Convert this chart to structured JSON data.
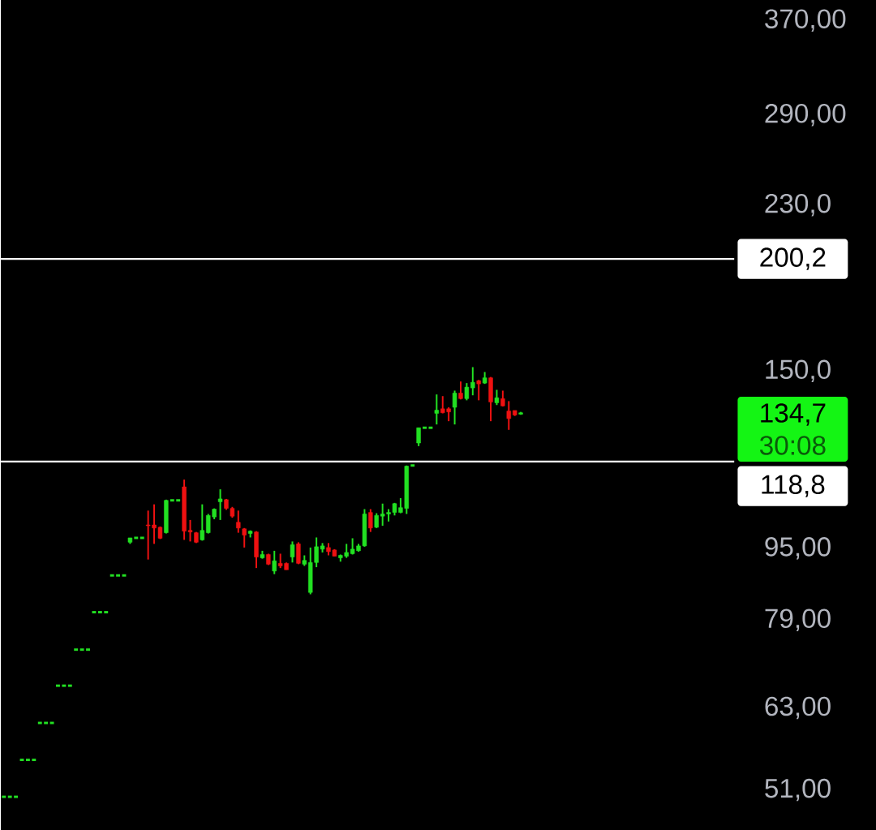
{
  "chart_data": {
    "type": "candlestick",
    "log": true,
    "grid": false,
    "categories": [
      null,
      null,
      null,
      null,
      null,
      null,
      null,
      null,
      null,
      null,
      null,
      null,
      null,
      null,
      null,
      null,
      null,
      null,
      null,
      null,
      null,
      null,
      null,
      null,
      null,
      null,
      null,
      null,
      null,
      null,
      null,
      null,
      null,
      null,
      null,
      null,
      null,
      null,
      null,
      null,
      null,
      null,
      null,
      null,
      null,
      null,
      null,
      null,
      null,
      null,
      null,
      null,
      null,
      null,
      null,
      null,
      null,
      null,
      null,
      null,
      null,
      null,
      null,
      null,
      null,
      null,
      null,
      null,
      null,
      null,
      null,
      null,
      null,
      null,
      null,
      null,
      null,
      null,
      null,
      null,
      null,
      null,
      null,
      null,
      null,
      null,
      null,
      null,
      null,
      null,
      null,
      null,
      null,
      null,
      null,
      null,
      null,
      null,
      null,
      null,
      null,
      null,
      null,
      null,
      null,
      null,
      null,
      null,
      null,
      null,
      null,
      null,
      null,
      null,
      null,
      null,
      null,
      null,
      null,
      null,
      null,
      null
    ],
    "ohlc": [
      [
        50.1,
        50.1,
        50.1,
        50.1
      ],
      [
        50.1,
        50.1,
        50.1,
        50.1
      ],
      [
        50.1,
        50.1,
        50.1,
        50.1
      ],
      [
        55.1,
        55.1,
        55.1,
        55.1
      ],
      [
        55.1,
        55.1,
        55.1,
        55.1
      ],
      [
        55.1,
        55.1,
        55.1,
        55.1
      ],
      [
        60.6,
        60.6,
        60.6,
        60.6
      ],
      [
        60.6,
        60.6,
        60.6,
        60.6
      ],
      [
        60.6,
        60.6,
        60.6,
        60.6
      ],
      [
        66.7,
        66.7,
        66.7,
        66.7
      ],
      [
        66.7,
        66.7,
        66.7,
        66.7
      ],
      [
        66.7,
        66.7,
        66.7,
        66.7
      ],
      [
        73.2,
        73.2,
        73.2,
        73.2
      ],
      [
        73.2,
        73.2,
        73.2,
        73.2
      ],
      [
        73.2,
        73.2,
        73.2,
        73.2
      ],
      [
        80.6,
        80.6,
        80.6,
        80.6
      ],
      [
        80.6,
        80.6,
        80.6,
        80.6
      ],
      [
        80.6,
        80.6,
        80.6,
        80.6
      ],
      [
        88.6,
        88.6,
        88.6,
        88.6
      ],
      [
        88.6,
        88.6,
        88.6,
        88.6
      ],
      [
        88.6,
        88.6,
        88.6,
        88.6
      ],
      [
        96.5,
        97.6,
        96.1,
        97.6
      ],
      [
        97.6,
        97.6,
        97.6,
        97.6
      ],
      [
        97.6,
        97.6,
        97.6,
        97.6
      ],
      [
        100.9,
        104.7,
        92.3,
        100.7
      ],
      [
        100.9,
        106.4,
        96.1,
        100.1
      ],
      [
        100.3,
        100.5,
        97.3,
        97.5
      ],
      [
        98.9,
        107.7,
        98.7,
        107.5
      ],
      [
        107.5,
        107.5,
        107.5,
        107.5
      ],
      [
        107.5,
        107.5,
        107.5,
        107.5
      ],
      [
        111.3,
        113.4,
        97.1,
        99.3
      ],
      [
        99.5,
        102.2,
        96.7,
        99.1
      ],
      [
        98.9,
        99.1,
        96.3,
        96.5
      ],
      [
        97.1,
        106.4,
        96.9,
        99.5
      ],
      [
        98.9,
        103.8,
        98.7,
        103.4
      ],
      [
        103.0,
        105.3,
        102.4,
        105.1
      ],
      [
        107.1,
        110.6,
        102.2,
        107.9
      ],
      [
        107.7,
        107.9,
        104.9,
        105.3
      ],
      [
        105.3,
        105.7,
        102.8,
        103.2
      ],
      [
        101.6,
        104.7,
        98.9,
        100.1
      ],
      [
        99.9,
        100.1,
        95.2,
        98.3
      ],
      [
        98.7,
        99.5,
        97.7,
        99.3
      ],
      [
        99.1,
        99.3,
        90.3,
        92.9
      ],
      [
        92.7,
        94.4,
        92.5,
        93.5
      ],
      [
        93.5,
        93.7,
        91.0,
        91.2
      ],
      [
        89.6,
        94.4,
        88.9,
        92.0
      ],
      [
        91.4,
        93.7,
        90.3,
        90.8
      ],
      [
        91.4,
        91.6,
        89.9,
        89.9
      ],
      [
        92.9,
        96.7,
        91.6,
        95.9
      ],
      [
        96.1,
        96.5,
        91.2,
        91.4
      ],
      [
        91.2,
        93.3,
        90.8,
        92.1
      ],
      [
        84.8,
        95.2,
        84.4,
        91.6
      ],
      [
        91.6,
        97.7,
        90.5,
        95.4
      ],
      [
        94.8,
        96.3,
        94.0,
        95.6
      ],
      [
        95.2,
        96.3,
        93.3,
        94.2
      ],
      [
        94.6,
        94.8,
        93.1,
        93.1
      ],
      [
        92.7,
        93.5,
        91.8,
        93.3
      ],
      [
        93.1,
        96.1,
        92.7,
        94.0
      ],
      [
        93.7,
        97.5,
        93.5,
        94.8
      ],
      [
        94.4,
        96.1,
        94.2,
        95.6
      ],
      [
        95.6,
        105.1,
        95.4,
        103.8
      ],
      [
        104.2,
        105.1,
        99.1,
        100.1
      ],
      [
        100.3,
        104.0,
        100.1,
        103.4
      ],
      [
        103.2,
        106.6,
        100.7,
        103.8
      ],
      [
        103.8,
        105.1,
        101.8,
        104.2
      ],
      [
        104.2,
        106.8,
        103.4,
        106.6
      ],
      [
        104.2,
        108.1,
        104.0,
        105.5
      ],
      [
        105.3,
        117.6,
        103.8,
        117.4
      ],
      [
        117.6,
        117.6,
        117.6,
        117.6
      ],
      [
        124.6,
        129.6,
        123.6,
        129.6
      ],
      [
        129.6,
        129.6,
        129.6,
        129.6
      ],
      [
        129.6,
        129.6,
        129.6,
        129.6
      ],
      [
        134.5,
        141.2,
        130.7,
        135.6
      ],
      [
        136.1,
        140.6,
        134.5,
        134.7
      ],
      [
        136.1,
        136.6,
        131.8,
        135.0
      ],
      [
        136.6,
        142.6,
        130.7,
        141.7
      ],
      [
        141.7,
        146.0,
        139.4,
        139.7
      ],
      [
        139.7,
        145.4,
        139.1,
        143.9
      ],
      [
        143.6,
        151.5,
        140.9,
        145.7
      ],
      [
        146.3,
        146.6,
        139.1,
        145.1
      ],
      [
        145.4,
        149.6,
        145.1,
        147.4
      ],
      [
        147.4,
        147.7,
        131.8,
        138.5
      ],
      [
        138.2,
        142.9,
        137.4,
        140.0
      ],
      [
        139.7,
        142.6,
        136.9,
        137.1
      ],
      [
        135.3,
        138.8,
        128.9,
        132.7
      ],
      [
        135.5,
        135.5,
        133.6,
        133.9
      ],
      [
        134.2,
        135.0,
        134.0,
        134.7
      ],
      null,
      null,
      null,
      null,
      null,
      null,
      null,
      null,
      null,
      null,
      null,
      null,
      null,
      null,
      null,
      null,
      null,
      null,
      null,
      null,
      null,
      null,
      null,
      null,
      null,
      null,
      null,
      null,
      null,
      null,
      null,
      null,
      null,
      null,
      null
    ],
    "ylim": [
      46,
      390
    ],
    "yticks": [
      {
        "value": 51,
        "label": "51,00"
      },
      {
        "value": 63,
        "label": "63,00"
      },
      {
        "value": 79,
        "label": "79,00"
      },
      {
        "value": 95,
        "label": "95,00"
      },
      {
        "value": 150,
        "label": "150,0"
      },
      {
        "value": 230,
        "label": "230,0"
      },
      {
        "value": 290,
        "label": "290,00"
      },
      {
        "value": 370,
        "label": "370,00"
      }
    ],
    "ref_lines": [
      {
        "axis": "y",
        "value": 200.2,
        "label": "200,2",
        "color": "#ffffff"
      },
      {
        "axis": "y",
        "value": 118.8,
        "label": "118,8",
        "color": "#ffffff"
      }
    ],
    "annotations": [
      "134,7",
      "30:08"
    ]
  }
}
